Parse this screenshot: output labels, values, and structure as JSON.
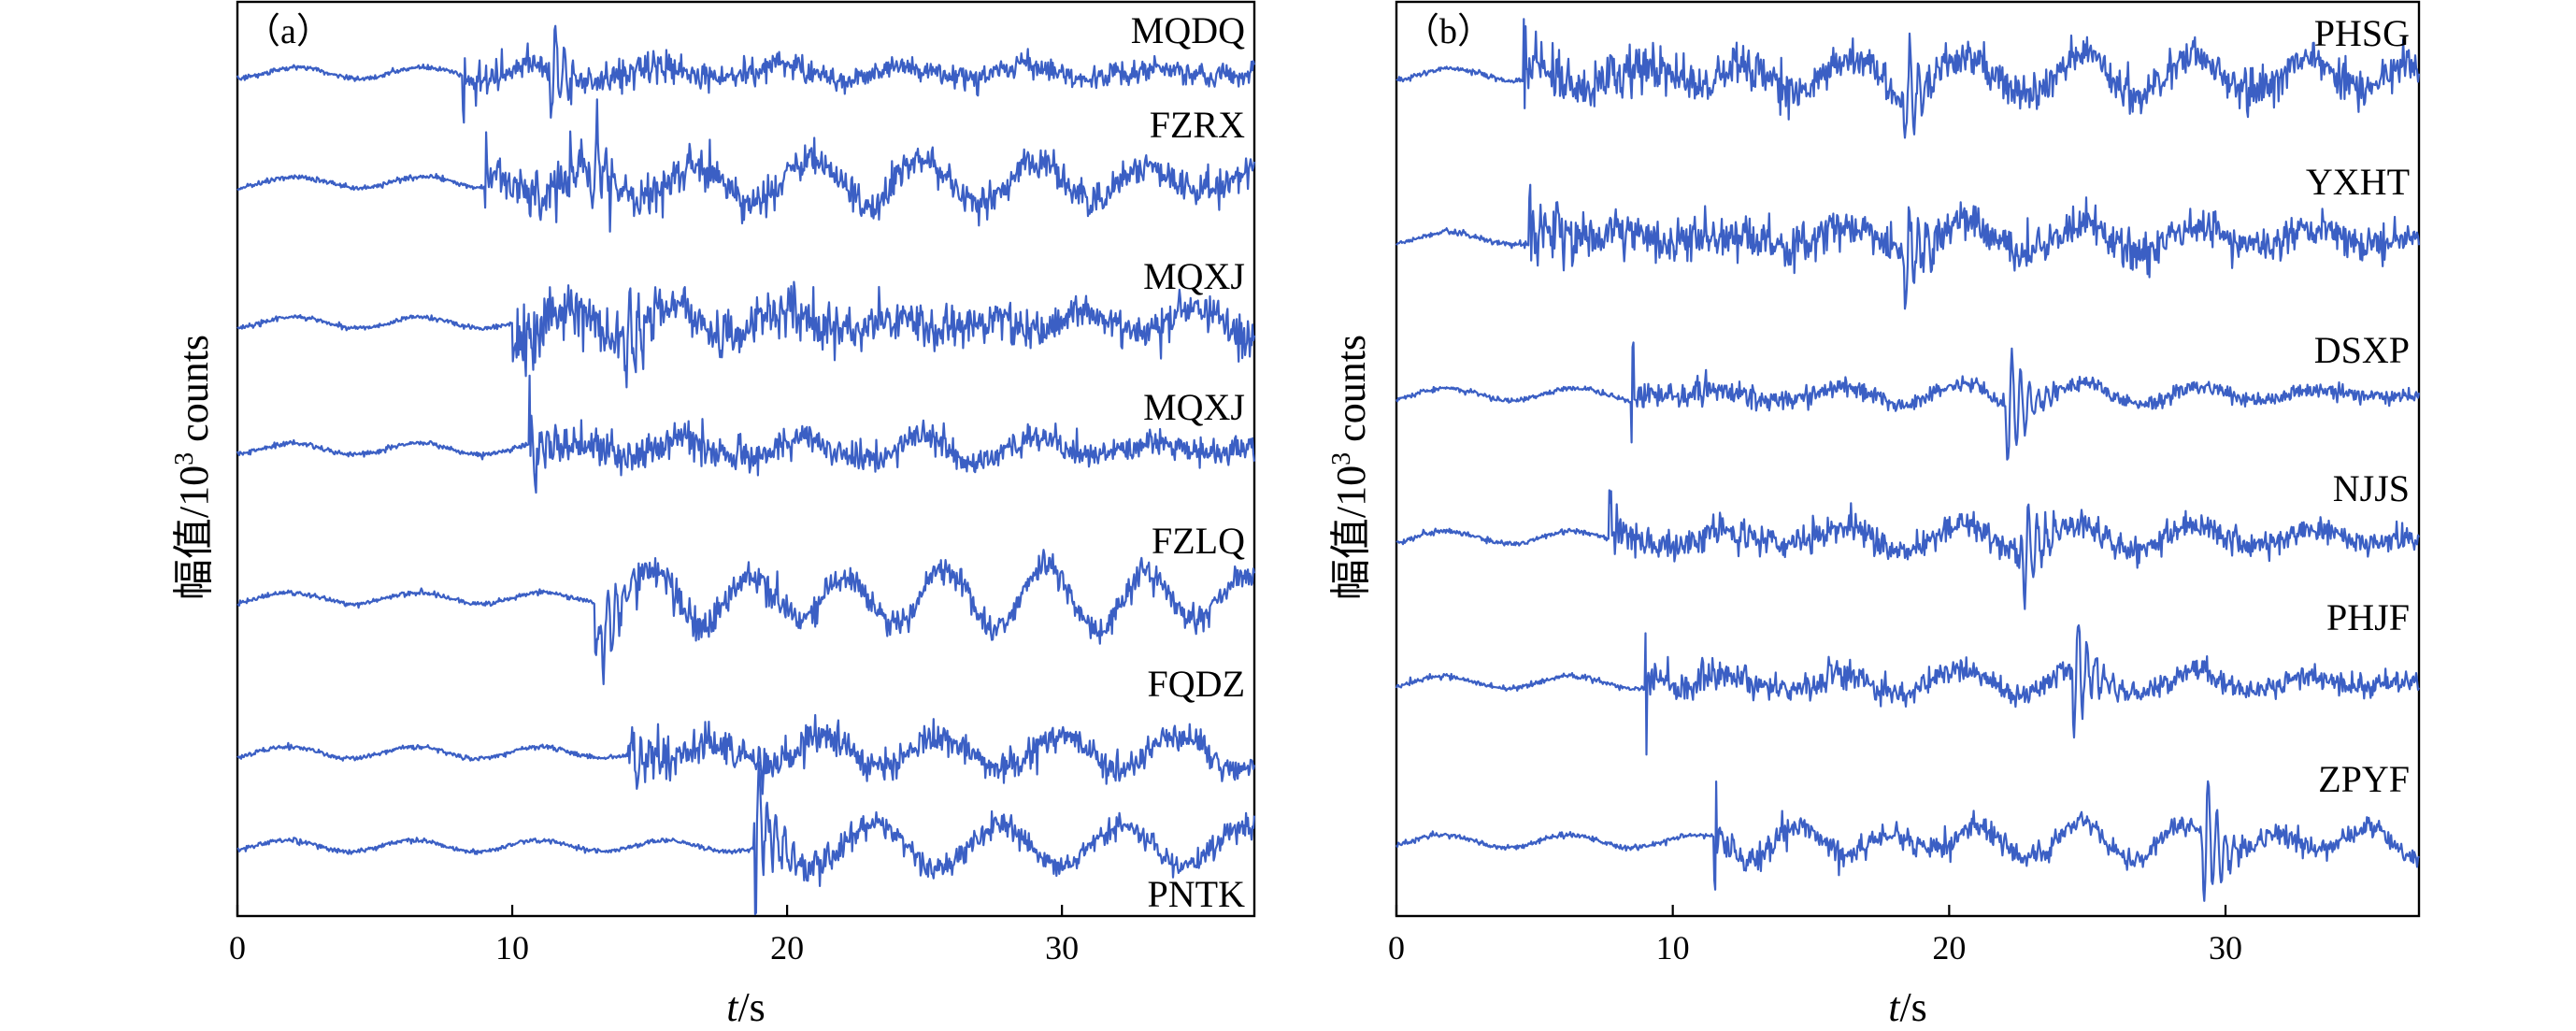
{
  "chart_data": [
    {
      "type": "line",
      "panel_label": "（a）",
      "xlabel_italic": "t",
      "xlabel_rest": "/s",
      "ylabel_main": "幅值/10",
      "ylabel_sup": "3",
      "ylabel_rest": " counts",
      "xlim": [
        0,
        37
      ],
      "xticks": [
        0,
        10,
        20,
        30
      ],
      "xtick_labels": [
        "0",
        "10",
        "20",
        "30"
      ],
      "grid": false,
      "series": [
        {
          "name": "MQDQ",
          "onset": 8.2,
          "noise": 0.55,
          "wave": 0.35,
          "wave_period": 4.5,
          "spike_t": 11.5,
          "spike_amp": 1.4,
          "late": 0.5
        },
        {
          "name": "FZRX",
          "onset": 9.0,
          "noise": 0.85,
          "wave": 0.8,
          "wave_period": 4.0,
          "spike_t": 13.0,
          "spike_amp": 1.3,
          "late": 0.6
        },
        {
          "name": "MQXJ",
          "onset": 10.0,
          "noise": 1.0,
          "wave": 0.45,
          "wave_period": 3.8,
          "spike_t": 14.2,
          "spike_amp": 1.4,
          "late": 0.55
        },
        {
          "name": "MQXJ",
          "onset": 10.6,
          "noise": 0.7,
          "wave": 0.3,
          "wave_period": 4.0,
          "spike_t": 10.6,
          "spike_amp": 1.5,
          "late": 0.4
        },
        {
          "name": "FZLQ",
          "onset": 13.0,
          "noise": 0.6,
          "wave": 1.3,
          "wave_period": 3.6,
          "spike_t": 13.4,
          "spike_amp": 1.2,
          "late": 0.45
        },
        {
          "name": "FQDZ",
          "onset": 14.2,
          "noise": 0.7,
          "wave": 0.6,
          "wave_period": 4.2,
          "spike_t": 14.3,
          "spike_amp": 1.5,
          "late": 0.5
        },
        {
          "name": "PNTK",
          "onset": 18.8,
          "noise": 0.55,
          "wave": 1.2,
          "wave_period": 4.5,
          "spike_t": 18.9,
          "spike_amp": 2.2,
          "late": 0.5
        }
      ]
    },
    {
      "type": "line",
      "panel_label": "（b）",
      "xlabel_italic": "t",
      "xlabel_rest": "/s",
      "ylabel_main": "幅值/10",
      "ylabel_sup": "3",
      "ylabel_rest": " counts",
      "xlim": [
        0,
        37
      ],
      "xticks": [
        0,
        10,
        20,
        30
      ],
      "xtick_labels": [
        "0",
        "10",
        "20",
        "30"
      ],
      "grid": false,
      "series": [
        {
          "name": "PHSG",
          "onset": 4.6,
          "noise": 0.9,
          "wave": 0.7,
          "wave_period": 4.0,
          "spike_t": 18.5,
          "spike_amp": 1.3,
          "late": 0.7
        },
        {
          "name": "YXHT",
          "onset": 4.8,
          "noise": 0.9,
          "wave": 0.4,
          "wave_period": 4.0,
          "spike_t": 18.5,
          "spike_amp": 1.5,
          "late": 0.5
        },
        {
          "name": "DSXP",
          "onset": 8.5,
          "noise": 0.35,
          "wave": 0.2,
          "wave_period": 4.0,
          "spike_t": 22.2,
          "spike_amp": 1.8,
          "late": 0.35
        },
        {
          "name": "NJJS",
          "onset": 7.7,
          "noise": 0.6,
          "wave": 0.3,
          "wave_period": 4.0,
          "spike_t": 22.8,
          "spike_amp": 1.5,
          "late": 0.45
        },
        {
          "name": "PHJF",
          "onset": 9.0,
          "noise": 0.5,
          "wave": 0.3,
          "wave_period": 4.0,
          "spike_t": 24.6,
          "spike_amp": 1.8,
          "late": 0.35
        },
        {
          "name": "ZPYF",
          "onset": 11.5,
          "noise": 0.45,
          "wave": 0.6,
          "wave_period": 3.5,
          "spike_t": 29.3,
          "spike_amp": 1.9,
          "late": 0.45
        }
      ]
    }
  ]
}
